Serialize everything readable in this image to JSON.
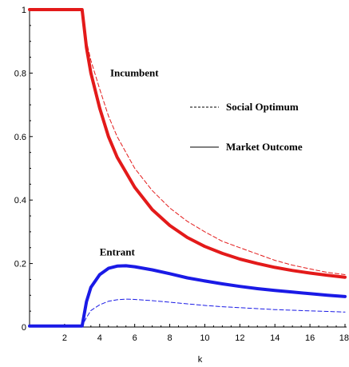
{
  "chart_data": {
    "type": "line",
    "title": "",
    "xlabel": "k",
    "ylabel": "",
    "xlim": [
      0,
      18
    ],
    "ylim": [
      0,
      1
    ],
    "x_ticks": [
      2,
      4,
      6,
      8,
      10,
      12,
      14,
      16,
      18
    ],
    "x_tick_labels": [
      "2",
      "4",
      "6",
      "8",
      "10",
      "12",
      "14",
      "16",
      "18"
    ],
    "y_ticks": [
      0,
      0.2,
      0.4,
      0.6,
      0.8,
      1
    ],
    "y_tick_labels": [
      "0",
      "0.2",
      "0.4",
      "0.6",
      "0.8",
      "1"
    ],
    "grid": false,
    "legend": [
      {
        "label": "Social Optimum",
        "style": "dashed"
      },
      {
        "label": "Market Outcome",
        "style": "solid"
      }
    ],
    "annotations": [
      {
        "text": "Incumbent",
        "x": 4.6,
        "y": 0.8
      },
      {
        "text": "Entrant",
        "x": 4.0,
        "y": 0.235
      }
    ],
    "series": [
      {
        "group": "Incumbent",
        "style": "solid",
        "color": "#e31a1a",
        "x": [
          0,
          3,
          3.25,
          3.5,
          4,
          4.5,
          5,
          6,
          7,
          8,
          9,
          10,
          11,
          12,
          13,
          14,
          15,
          16,
          17,
          18
        ],
        "y": [
          1,
          1,
          0.88,
          0.8,
          0.69,
          0.6,
          0.535,
          0.44,
          0.37,
          0.32,
          0.282,
          0.254,
          0.232,
          0.214,
          0.2,
          0.188,
          0.178,
          0.17,
          0.163,
          0.157
        ]
      },
      {
        "group": "Incumbent",
        "style": "dashed",
        "color": "#e31a1a",
        "x": [
          0,
          3,
          3.25,
          3.5,
          4,
          4.5,
          5,
          6,
          7,
          8,
          9,
          10,
          11,
          12,
          13,
          14,
          15,
          16,
          17,
          18
        ],
        "y": [
          1,
          1,
          0.9,
          0.84,
          0.75,
          0.665,
          0.6,
          0.5,
          0.43,
          0.375,
          0.333,
          0.3,
          0.27,
          0.25,
          0.23,
          0.21,
          0.195,
          0.183,
          0.172,
          0.165
        ]
      },
      {
        "group": "Entrant",
        "style": "solid",
        "color": "#1a1ae6",
        "x": [
          0,
          3,
          3.25,
          3.5,
          4,
          4.5,
          5,
          5.5,
          6,
          7,
          8,
          9,
          10,
          11,
          12,
          13,
          14,
          15,
          16,
          17,
          18
        ],
        "y": [
          0.003,
          0.003,
          0.08,
          0.125,
          0.165,
          0.185,
          0.192,
          0.193,
          0.19,
          0.18,
          0.168,
          0.155,
          0.145,
          0.136,
          0.128,
          0.121,
          0.115,
          0.11,
          0.105,
          0.1,
          0.096
        ]
      },
      {
        "group": "Entrant",
        "style": "dashed",
        "color": "#1a1ae6",
        "x": [
          0,
          3,
          3.25,
          3.5,
          4,
          4.5,
          5,
          5.5,
          6,
          7,
          8,
          9,
          10,
          11,
          12,
          13,
          14,
          15,
          16,
          17,
          18
        ],
        "y": [
          0.003,
          0.003,
          0.03,
          0.052,
          0.07,
          0.081,
          0.086,
          0.088,
          0.087,
          0.083,
          0.078,
          0.073,
          0.068,
          0.064,
          0.061,
          0.058,
          0.055,
          0.053,
          0.051,
          0.049,
          0.047
        ]
      }
    ]
  }
}
